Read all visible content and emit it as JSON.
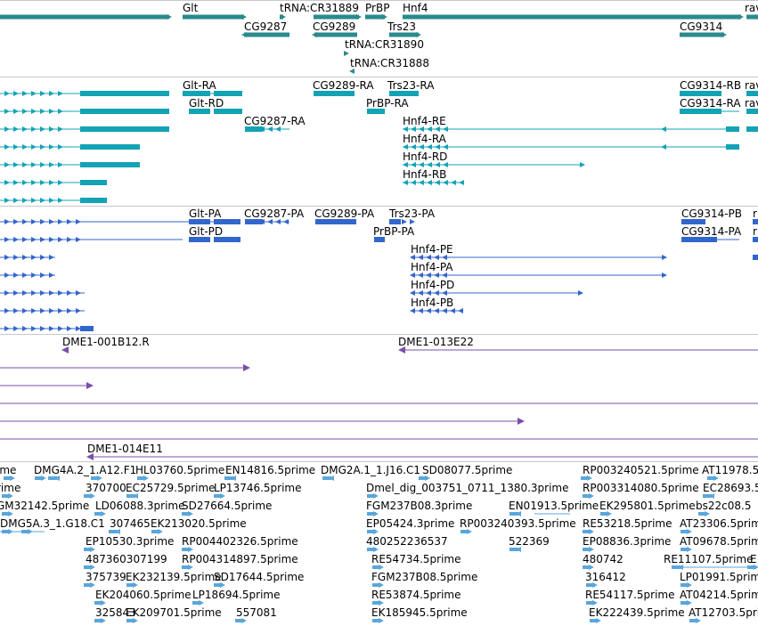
{
  "colors": {
    "gene": "#2a8a8c",
    "transcript_flybase": "#13a3b5",
    "transcript_refseq": "#3366cc",
    "clone": "#7b4fa8",
    "est": "#5aa6dc",
    "separator": "#c8c8c8"
  },
  "tracks": {
    "genes": [
      {
        "label": "Glt"
      },
      {
        "label": "tRNA:CR31889"
      },
      {
        "label": "PrBP"
      },
      {
        "label": "Hnf4"
      },
      {
        "label": "rav"
      },
      {
        "label": "CG9287"
      },
      {
        "label": "CG9289"
      },
      {
        "label": "Trs23"
      },
      {
        "label": "CG9314"
      },
      {
        "label": "tRNA:CR31890"
      },
      {
        "label": "tRNA:CR31888"
      }
    ],
    "flybase_transcripts": [
      {
        "label": "Glt-RA"
      },
      {
        "label": "CG9289-RA"
      },
      {
        "label": "Trs23-RA"
      },
      {
        "label": "CG9314-RB"
      },
      {
        "label": "rav"
      },
      {
        "label": "Glt-RD"
      },
      {
        "label": "PrBP-RA"
      },
      {
        "label": "CG9314-RA"
      },
      {
        "label": "rav"
      },
      {
        "label": "CG9287-RA"
      },
      {
        "label": "Hnf4-RE"
      },
      {
        "label": "Hnf4-RA"
      },
      {
        "label": "Hnf4-RD"
      },
      {
        "label": "Hnf4-RB"
      }
    ],
    "refseq_transcripts": [
      {
        "label": "Glt-PA"
      },
      {
        "label": "CG9287-PA"
      },
      {
        "label": "CG9289-PA"
      },
      {
        "label": "Trs23-PA"
      },
      {
        "label": "CG9314-PB"
      },
      {
        "label": "r"
      },
      {
        "label": "Glt-PD"
      },
      {
        "label": "PrBP-PA"
      },
      {
        "label": "CG9314-PA"
      },
      {
        "label": "r"
      },
      {
        "label": "Hnf4-PE"
      },
      {
        "label": "Hnf4-PA"
      },
      {
        "label": "Hnf4-PD"
      },
      {
        "label": "Hnf4-PB"
      }
    ],
    "clones": [
      {
        "label": "DME1-001B12.R"
      },
      {
        "label": "DME1-013E22"
      },
      {
        "label": "DME1-014E11"
      }
    ],
    "ests": [
      {
        "label": "ime"
      },
      {
        "label": "DMG4A.2_1.A12.F1"
      },
      {
        "label": "HL03760.5prime"
      },
      {
        "label": "EN14816.5prime"
      },
      {
        "label": "DMG2A.1_1.J16.C1"
      },
      {
        "label": "SD08077.5prime"
      },
      {
        "label": "RP003240521.5prime"
      },
      {
        "label": "AT11978.5"
      },
      {
        "label": "rime"
      },
      {
        "label": "370700"
      },
      {
        "label": "EC25729.5prime"
      },
      {
        "label": "LP13746.5prime"
      },
      {
        "label": "Dmel_dig_003751_0711_1380.3prime"
      },
      {
        "label": "RP003314080.5prime"
      },
      {
        "label": "EC28693.5"
      },
      {
        "label": "GM32142.5prime"
      },
      {
        "label": "LD06088.3prime"
      },
      {
        "label": "SD27664.5prime"
      },
      {
        "label": "FGM237B08.3prime"
      },
      {
        "label": "EN01913.5prime"
      },
      {
        "label": "EK295801.5prime"
      },
      {
        "label": "bs22c08.5"
      },
      {
        "label": "DMG5A.3_1.G18.C1"
      },
      {
        "label": "307465"
      },
      {
        "label": "EK213020.5prime"
      },
      {
        "label": "EP05424.3prime"
      },
      {
        "label": "RP003240393.5prime"
      },
      {
        "label": "RE53218.5prime"
      },
      {
        "label": "AT23306.5prime"
      },
      {
        "label": "EP10530.3prime"
      },
      {
        "label": "RP004402326.5prime"
      },
      {
        "label": "480252236537"
      },
      {
        "label": "522369"
      },
      {
        "label": "EP08836.3prime"
      },
      {
        "label": "AT09678.5prime"
      },
      {
        "label": "487360307199"
      },
      {
        "label": "RP004314897.5prime"
      },
      {
        "label": "RE54734.5prime"
      },
      {
        "label": "480742"
      },
      {
        "label": "RE11107.5prime"
      },
      {
        "label": "E"
      },
      {
        "label": "375739"
      },
      {
        "label": "EK232139.5prime"
      },
      {
        "label": "SD17644.5prime"
      },
      {
        "label": "FGM237B08.5prime"
      },
      {
        "label": "316412"
      },
      {
        "label": "LP01991.5prime"
      },
      {
        "label": "EK204060.5prime"
      },
      {
        "label": "LP18694.5prime"
      },
      {
        "label": "RE53874.5prime"
      },
      {
        "label": "RE54117.5prime"
      },
      {
        "label": "AT04214.5prime"
      },
      {
        "label": "325843"
      },
      {
        "label": "EK209701.5prime"
      },
      {
        "label": "557081"
      },
      {
        "label": "EK185945.5prime"
      },
      {
        "label": "EK222439.5prime"
      },
      {
        "label": "AT12703.5prime"
      }
    ]
  }
}
